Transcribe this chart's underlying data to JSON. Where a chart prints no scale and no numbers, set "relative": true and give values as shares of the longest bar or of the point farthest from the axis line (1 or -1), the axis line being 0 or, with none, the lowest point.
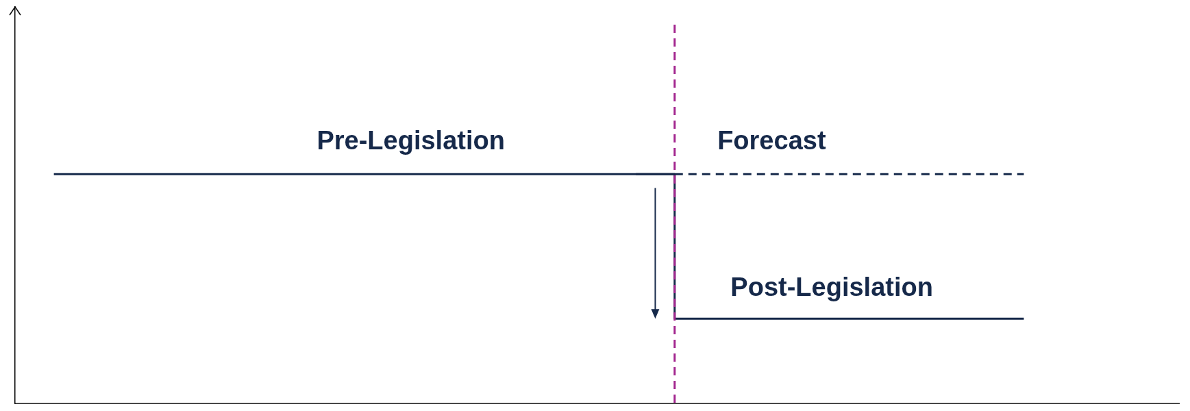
{
  "chart_data": {
    "type": "line",
    "relative": true,
    "tick_labels": false,
    "grid": false,
    "legend": false,
    "marker": "none",
    "categories": [
      null,
      null,
      null,
      null,
      null,
      null,
      null,
      null,
      null,
      null,
      null,
      null,
      null,
      null,
      null,
      null,
      null,
      null,
      null,
      null,
      null,
      null,
      null,
      null,
      null,
      null,
      null,
      null,
      null,
      null,
      null
    ],
    "series": [
      {
        "name": "Pre-Legislation",
        "color": "#16294a",
        "values": [
          null,
          1,
          1,
          1,
          1,
          1,
          1,
          1,
          1,
          1,
          1,
          1,
          1,
          1,
          1,
          1,
          1,
          1,
          null,
          null,
          null,
          null,
          null,
          null,
          null,
          null,
          null,
          null,
          null,
          null,
          null
        ],
        "line_style": "solid"
      },
      {
        "name": "Forecast",
        "color": "#16294a",
        "values": [
          null,
          null,
          null,
          null,
          null,
          null,
          null,
          null,
          null,
          null,
          null,
          null,
          null,
          null,
          null,
          null,
          null,
          1,
          1,
          1,
          1,
          1,
          1,
          1,
          1,
          1,
          1,
          null,
          null,
          null,
          null
        ],
        "line_style": "dashed"
      },
      {
        "name": "Post-Legislation",
        "type": "step",
        "color": "#16294a",
        "values": [
          null,
          null,
          null,
          null,
          null,
          null,
          null,
          null,
          null,
          null,
          null,
          null,
          null,
          null,
          null,
          null,
          1,
          0.37,
          0.37,
          0.37,
          0.37,
          0.37,
          0.37,
          0.37,
          0.37,
          0.37,
          0.37,
          null,
          null,
          null,
          null
        ],
        "line_style": "solid"
      }
    ]
  }
}
